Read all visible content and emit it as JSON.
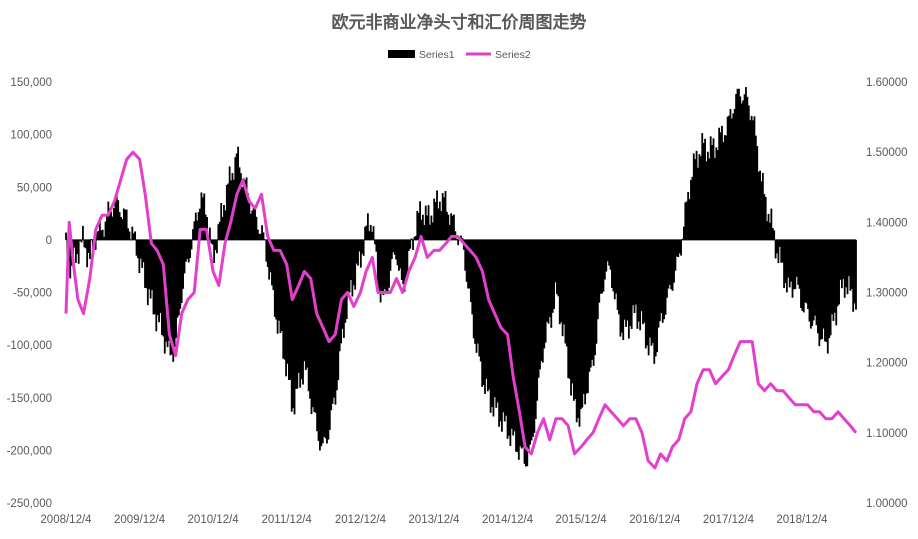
{
  "chart_data": {
    "type": "bar+line",
    "title": "欧元非商业净头寸和汇价周图走势",
    "legend": {
      "position": "top",
      "entries": [
        "Series1",
        "Series2"
      ]
    },
    "x_tick_labels": [
      "2008/12/4",
      "2009/12/4",
      "2010/12/4",
      "2011/12/4",
      "2012/12/4",
      "2013/12/4",
      "2014/12/4",
      "2015/12/4",
      "2016/12/4",
      "2017/12/4",
      "2018/12/4"
    ],
    "x_range": [
      "2008-12-04",
      "2019-08-29"
    ],
    "y_left": {
      "min": -250000,
      "max": 150000,
      "step": 50000,
      "tick_labels": [
        "150,000",
        "100,000",
        "50,000",
        "0",
        "-50,000",
        "-100,000",
        "-150,000",
        "-200,000",
        "-250,000"
      ]
    },
    "y_right": {
      "min": 1.0,
      "max": 1.6,
      "step": 0.1,
      "tick_labels": [
        "1.60000",
        "1.50000",
        "1.40000",
        "1.30000",
        "1.20000",
        "1.10000",
        "1.00000"
      ]
    },
    "gridlines": false,
    "series": [
      {
        "name": "Series1",
        "chart_type": "bar",
        "axis": "left",
        "color": "#000000",
        "points": [
          [
            "2008-12-04",
            -5000
          ],
          [
            "2009-01-01",
            -30000
          ],
          [
            "2009-02-01",
            -10000
          ],
          [
            "2009-03-01",
            0
          ],
          [
            "2009-04-01",
            -20000
          ],
          [
            "2009-05-01",
            5000
          ],
          [
            "2009-06-01",
            10000
          ],
          [
            "2009-07-01",
            25000
          ],
          [
            "2009-08-01",
            35000
          ],
          [
            "2009-09-01",
            30000
          ],
          [
            "2009-10-01",
            20000
          ],
          [
            "2009-11-01",
            5000
          ],
          [
            "2009-12-04",
            -20000
          ],
          [
            "2010-01-01",
            -40000
          ],
          [
            "2010-02-01",
            -60000
          ],
          [
            "2010-03-01",
            -75000
          ],
          [
            "2010-04-01",
            -90000
          ],
          [
            "2010-05-01",
            -110000
          ],
          [
            "2010-06-01",
            -100000
          ],
          [
            "2010-07-01",
            -50000
          ],
          [
            "2010-08-01",
            -20000
          ],
          [
            "2010-09-01",
            10000
          ],
          [
            "2010-10-01",
            40000
          ],
          [
            "2010-11-01",
            30000
          ],
          [
            "2010-12-04",
            -20000
          ],
          [
            "2011-01-01",
            10000
          ],
          [
            "2011-02-01",
            40000
          ],
          [
            "2011-03-01",
            60000
          ],
          [
            "2011-04-01",
            80000
          ],
          [
            "2011-05-01",
            60000
          ],
          [
            "2011-06-01",
            40000
          ],
          [
            "2011-07-01",
            20000
          ],
          [
            "2011-08-01",
            10000
          ],
          [
            "2011-09-01",
            -20000
          ],
          [
            "2011-10-01",
            -60000
          ],
          [
            "2011-11-01",
            -90000
          ],
          [
            "2011-12-04",
            -120000
          ],
          [
            "2012-01-01",
            -160000
          ],
          [
            "2012-02-01",
            -140000
          ],
          [
            "2012-03-01",
            -120000
          ],
          [
            "2012-04-01",
            -150000
          ],
          [
            "2012-05-01",
            -180000
          ],
          [
            "2012-06-01",
            -200000
          ],
          [
            "2012-07-01",
            -180000
          ],
          [
            "2012-08-01",
            -150000
          ],
          [
            "2012-09-01",
            -100000
          ],
          [
            "2012-10-01",
            -60000
          ],
          [
            "2012-11-01",
            -40000
          ],
          [
            "2012-12-04",
            -20000
          ],
          [
            "2013-01-01",
            10000
          ],
          [
            "2013-02-01",
            20000
          ],
          [
            "2013-03-01",
            -40000
          ],
          [
            "2013-04-01",
            -60000
          ],
          [
            "2013-05-01",
            -30000
          ],
          [
            "2013-06-01",
            -10000
          ],
          [
            "2013-07-01",
            -50000
          ],
          [
            "2013-08-01",
            -20000
          ],
          [
            "2013-09-01",
            10000
          ],
          [
            "2013-10-01",
            30000
          ],
          [
            "2013-11-01",
            20000
          ],
          [
            "2013-12-04",
            30000
          ],
          [
            "2014-01-01",
            40000
          ],
          [
            "2014-02-01",
            35000
          ],
          [
            "2014-03-01",
            20000
          ],
          [
            "2014-04-01",
            5000
          ],
          [
            "2014-05-01",
            -10000
          ],
          [
            "2014-06-01",
            -60000
          ],
          [
            "2014-07-01",
            -100000
          ],
          [
            "2014-08-01",
            -130000
          ],
          [
            "2014-09-01",
            -150000
          ],
          [
            "2014-10-01",
            -160000
          ],
          [
            "2014-11-01",
            -170000
          ],
          [
            "2014-12-04",
            -180000
          ],
          [
            "2015-01-01",
            -190000
          ],
          [
            "2015-02-01",
            -200000
          ],
          [
            "2015-03-01",
            -210000
          ],
          [
            "2015-04-01",
            -200000
          ],
          [
            "2015-05-01",
            -150000
          ],
          [
            "2015-06-01",
            -100000
          ],
          [
            "2015-07-01",
            -80000
          ],
          [
            "2015-08-01",
            -50000
          ],
          [
            "2015-09-01",
            -80000
          ],
          [
            "2015-10-01",
            -120000
          ],
          [
            "2015-11-01",
            -160000
          ],
          [
            "2015-12-04",
            -170000
          ],
          [
            "2016-01-01",
            -140000
          ],
          [
            "2016-02-01",
            -120000
          ],
          [
            "2016-03-01",
            -70000
          ],
          [
            "2016-04-01",
            -30000
          ],
          [
            "2016-05-01",
            -30000
          ],
          [
            "2016-06-01",
            -70000
          ],
          [
            "2016-07-01",
            -90000
          ],
          [
            "2016-08-01",
            -80000
          ],
          [
            "2016-09-01",
            -70000
          ],
          [
            "2016-10-01",
            -80000
          ],
          [
            "2016-11-01",
            -100000
          ],
          [
            "2016-12-04",
            -110000
          ],
          [
            "2017-01-01",
            -80000
          ],
          [
            "2017-02-01",
            -60000
          ],
          [
            "2017-03-01",
            -40000
          ],
          [
            "2017-04-01",
            -20000
          ],
          [
            "2017-05-01",
            20000
          ],
          [
            "2017-06-01",
            60000
          ],
          [
            "2017-07-01",
            80000
          ],
          [
            "2017-08-01",
            90000
          ],
          [
            "2017-09-01",
            85000
          ],
          [
            "2017-10-01",
            90000
          ],
          [
            "2017-11-01",
            100000
          ],
          [
            "2017-12-04",
            110000
          ],
          [
            "2018-01-01",
            130000
          ],
          [
            "2018-02-01",
            140000
          ],
          [
            "2018-03-01",
            135000
          ],
          [
            "2018-04-01",
            120000
          ],
          [
            "2018-05-01",
            80000
          ],
          [
            "2018-06-01",
            40000
          ],
          [
            "2018-07-01",
            20000
          ],
          [
            "2018-08-01",
            -10000
          ],
          [
            "2018-09-01",
            -30000
          ],
          [
            "2018-10-01",
            -50000
          ],
          [
            "2018-11-01",
            -40000
          ],
          [
            "2018-12-04",
            -60000
          ],
          [
            "2019-01-01",
            -70000
          ],
          [
            "2019-02-01",
            -80000
          ],
          [
            "2019-03-01",
            -90000
          ],
          [
            "2019-04-01",
            -100000
          ],
          [
            "2019-05-01",
            -85000
          ],
          [
            "2019-06-01",
            -60000
          ],
          [
            "2019-07-01",
            -40000
          ],
          [
            "2019-08-29",
            -60000
          ]
        ]
      },
      {
        "name": "Series2",
        "chart_type": "line",
        "axis": "right",
        "color": "#e23fcc",
        "points": [
          [
            "2008-12-04",
            1.27
          ],
          [
            "2008-12-20",
            1.4
          ],
          [
            "2009-01-10",
            1.34
          ],
          [
            "2009-02-01",
            1.29
          ],
          [
            "2009-03-01",
            1.27
          ],
          [
            "2009-04-01",
            1.32
          ],
          [
            "2009-05-01",
            1.39
          ],
          [
            "2009-06-01",
            1.41
          ],
          [
            "2009-07-01",
            1.41
          ],
          [
            "2009-08-01",
            1.43
          ],
          [
            "2009-09-01",
            1.46
          ],
          [
            "2009-10-01",
            1.49
          ],
          [
            "2009-11-01",
            1.5
          ],
          [
            "2009-12-04",
            1.49
          ],
          [
            "2010-01-01",
            1.44
          ],
          [
            "2010-02-01",
            1.37
          ],
          [
            "2010-03-01",
            1.36
          ],
          [
            "2010-04-01",
            1.34
          ],
          [
            "2010-05-01",
            1.24
          ],
          [
            "2010-06-01",
            1.21
          ],
          [
            "2010-07-01",
            1.27
          ],
          [
            "2010-08-01",
            1.29
          ],
          [
            "2010-09-01",
            1.3
          ],
          [
            "2010-10-01",
            1.39
          ],
          [
            "2010-11-01",
            1.39
          ],
          [
            "2010-12-04",
            1.33
          ],
          [
            "2011-01-01",
            1.31
          ],
          [
            "2011-02-01",
            1.37
          ],
          [
            "2011-03-01",
            1.4
          ],
          [
            "2011-04-01",
            1.44
          ],
          [
            "2011-05-01",
            1.46
          ],
          [
            "2011-06-01",
            1.43
          ],
          [
            "2011-07-01",
            1.42
          ],
          [
            "2011-08-01",
            1.44
          ],
          [
            "2011-09-01",
            1.38
          ],
          [
            "2011-10-01",
            1.36
          ],
          [
            "2011-11-01",
            1.36
          ],
          [
            "2011-12-04",
            1.34
          ],
          [
            "2012-01-01",
            1.29
          ],
          [
            "2012-02-01",
            1.31
          ],
          [
            "2012-03-01",
            1.33
          ],
          [
            "2012-04-01",
            1.32
          ],
          [
            "2012-05-01",
            1.27
          ],
          [
            "2012-06-01",
            1.25
          ],
          [
            "2012-07-01",
            1.23
          ],
          [
            "2012-08-01",
            1.24
          ],
          [
            "2012-09-01",
            1.29
          ],
          [
            "2012-10-01",
            1.3
          ],
          [
            "2012-11-01",
            1.28
          ],
          [
            "2012-12-04",
            1.3
          ],
          [
            "2013-01-01",
            1.33
          ],
          [
            "2013-02-01",
            1.35
          ],
          [
            "2013-03-01",
            1.3
          ],
          [
            "2013-04-01",
            1.3
          ],
          [
            "2013-05-01",
            1.3
          ],
          [
            "2013-06-01",
            1.32
          ],
          [
            "2013-07-01",
            1.3
          ],
          [
            "2013-08-01",
            1.33
          ],
          [
            "2013-09-01",
            1.35
          ],
          [
            "2013-10-01",
            1.38
          ],
          [
            "2013-11-01",
            1.35
          ],
          [
            "2013-12-04",
            1.36
          ],
          [
            "2014-01-01",
            1.36
          ],
          [
            "2014-02-01",
            1.37
          ],
          [
            "2014-03-01",
            1.38
          ],
          [
            "2014-04-01",
            1.38
          ],
          [
            "2014-05-01",
            1.37
          ],
          [
            "2014-06-01",
            1.36
          ],
          [
            "2014-07-01",
            1.35
          ],
          [
            "2014-08-01",
            1.33
          ],
          [
            "2014-09-01",
            1.29
          ],
          [
            "2014-10-01",
            1.27
          ],
          [
            "2014-11-01",
            1.25
          ],
          [
            "2014-12-04",
            1.24
          ],
          [
            "2015-01-01",
            1.18
          ],
          [
            "2015-02-01",
            1.13
          ],
          [
            "2015-03-01",
            1.08
          ],
          [
            "2015-04-01",
            1.07
          ],
          [
            "2015-05-01",
            1.1
          ],
          [
            "2015-06-01",
            1.12
          ],
          [
            "2015-07-01",
            1.09
          ],
          [
            "2015-08-01",
            1.12
          ],
          [
            "2015-09-01",
            1.12
          ],
          [
            "2015-10-01",
            1.11
          ],
          [
            "2015-11-01",
            1.07
          ],
          [
            "2015-12-04",
            1.08
          ],
          [
            "2016-01-01",
            1.09
          ],
          [
            "2016-02-01",
            1.1
          ],
          [
            "2016-03-01",
            1.12
          ],
          [
            "2016-04-01",
            1.14
          ],
          [
            "2016-05-01",
            1.13
          ],
          [
            "2016-06-01",
            1.12
          ],
          [
            "2016-07-01",
            1.11
          ],
          [
            "2016-08-01",
            1.12
          ],
          [
            "2016-09-01",
            1.12
          ],
          [
            "2016-10-01",
            1.1
          ],
          [
            "2016-11-01",
            1.06
          ],
          [
            "2016-12-04",
            1.05
          ],
          [
            "2017-01-01",
            1.07
          ],
          [
            "2017-02-01",
            1.06
          ],
          [
            "2017-03-01",
            1.08
          ],
          [
            "2017-04-01",
            1.09
          ],
          [
            "2017-05-01",
            1.12
          ],
          [
            "2017-06-01",
            1.13
          ],
          [
            "2017-07-01",
            1.17
          ],
          [
            "2017-08-01",
            1.19
          ],
          [
            "2017-09-01",
            1.19
          ],
          [
            "2017-10-01",
            1.17
          ],
          [
            "2017-11-01",
            1.18
          ],
          [
            "2017-12-04",
            1.19
          ],
          [
            "2018-01-01",
            1.21
          ],
          [
            "2018-02-01",
            1.23
          ],
          [
            "2018-03-01",
            1.23
          ],
          [
            "2018-04-01",
            1.23
          ],
          [
            "2018-05-01",
            1.17
          ],
          [
            "2018-06-01",
            1.16
          ],
          [
            "2018-07-01",
            1.17
          ],
          [
            "2018-08-01",
            1.16
          ],
          [
            "2018-09-01",
            1.16
          ],
          [
            "2018-10-01",
            1.15
          ],
          [
            "2018-11-01",
            1.14
          ],
          [
            "2018-12-04",
            1.14
          ],
          [
            "2019-01-01",
            1.14
          ],
          [
            "2019-02-01",
            1.13
          ],
          [
            "2019-03-01",
            1.13
          ],
          [
            "2019-04-01",
            1.12
          ],
          [
            "2019-05-01",
            1.12
          ],
          [
            "2019-06-01",
            1.13
          ],
          [
            "2019-07-01",
            1.12
          ],
          [
            "2019-08-01",
            1.11
          ],
          [
            "2019-08-29",
            1.1
          ]
        ]
      }
    ]
  }
}
